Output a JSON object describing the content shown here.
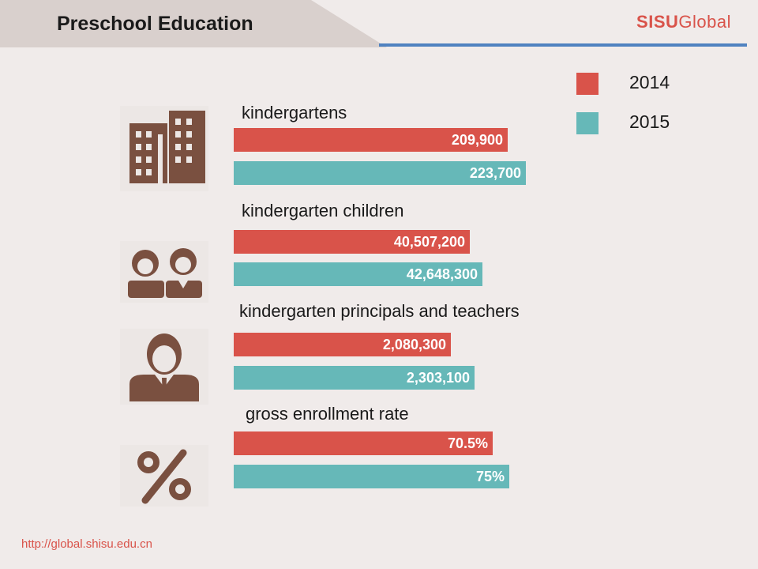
{
  "header": {
    "title": "Preschool Education",
    "brand_bold": "SISU",
    "brand_rest": "Global"
  },
  "colors": {
    "y2014": "#d9534a",
    "y2015": "#66b8b8",
    "icon": "#7a5040",
    "tab": "#d9d0cd",
    "rule": "#4f82c0"
  },
  "legend": [
    {
      "label": "2014",
      "color": "#d9534a"
    },
    {
      "label": "2015",
      "color": "#66b8b8"
    }
  ],
  "chart_data": [
    {
      "type": "bar",
      "title": "kindergartens",
      "icon": "buildings-icon",
      "series": [
        {
          "name": "2014",
          "value": 209900,
          "label": "209,900"
        },
        {
          "name": "2015",
          "value": 223700,
          "label": "223,700"
        }
      ]
    },
    {
      "type": "bar",
      "title": "kindergarten children",
      "icon": "children-icon",
      "series": [
        {
          "name": "2014",
          "value": 40507200,
          "label": "40,507,200"
        },
        {
          "name": "2015",
          "value": 42648300,
          "label": "42,648,300"
        }
      ]
    },
    {
      "type": "bar",
      "title": "kindergarten principals and teachers",
      "icon": "teacher-icon",
      "series": [
        {
          "name": "2014",
          "value": 2080300,
          "label": "2,080,300"
        },
        {
          "name": "2015",
          "value": 2303100,
          "label": "2,303,100"
        }
      ]
    },
    {
      "type": "bar",
      "title": "gross enrollment rate",
      "icon": "percent-icon",
      "series": [
        {
          "name": "2014",
          "value": 70.5,
          "label": "70.5%"
        },
        {
          "name": "2015",
          "value": 75,
          "label": "75%"
        }
      ]
    }
  ],
  "footer": {
    "url": "http://global.shisu.edu.cn"
  }
}
